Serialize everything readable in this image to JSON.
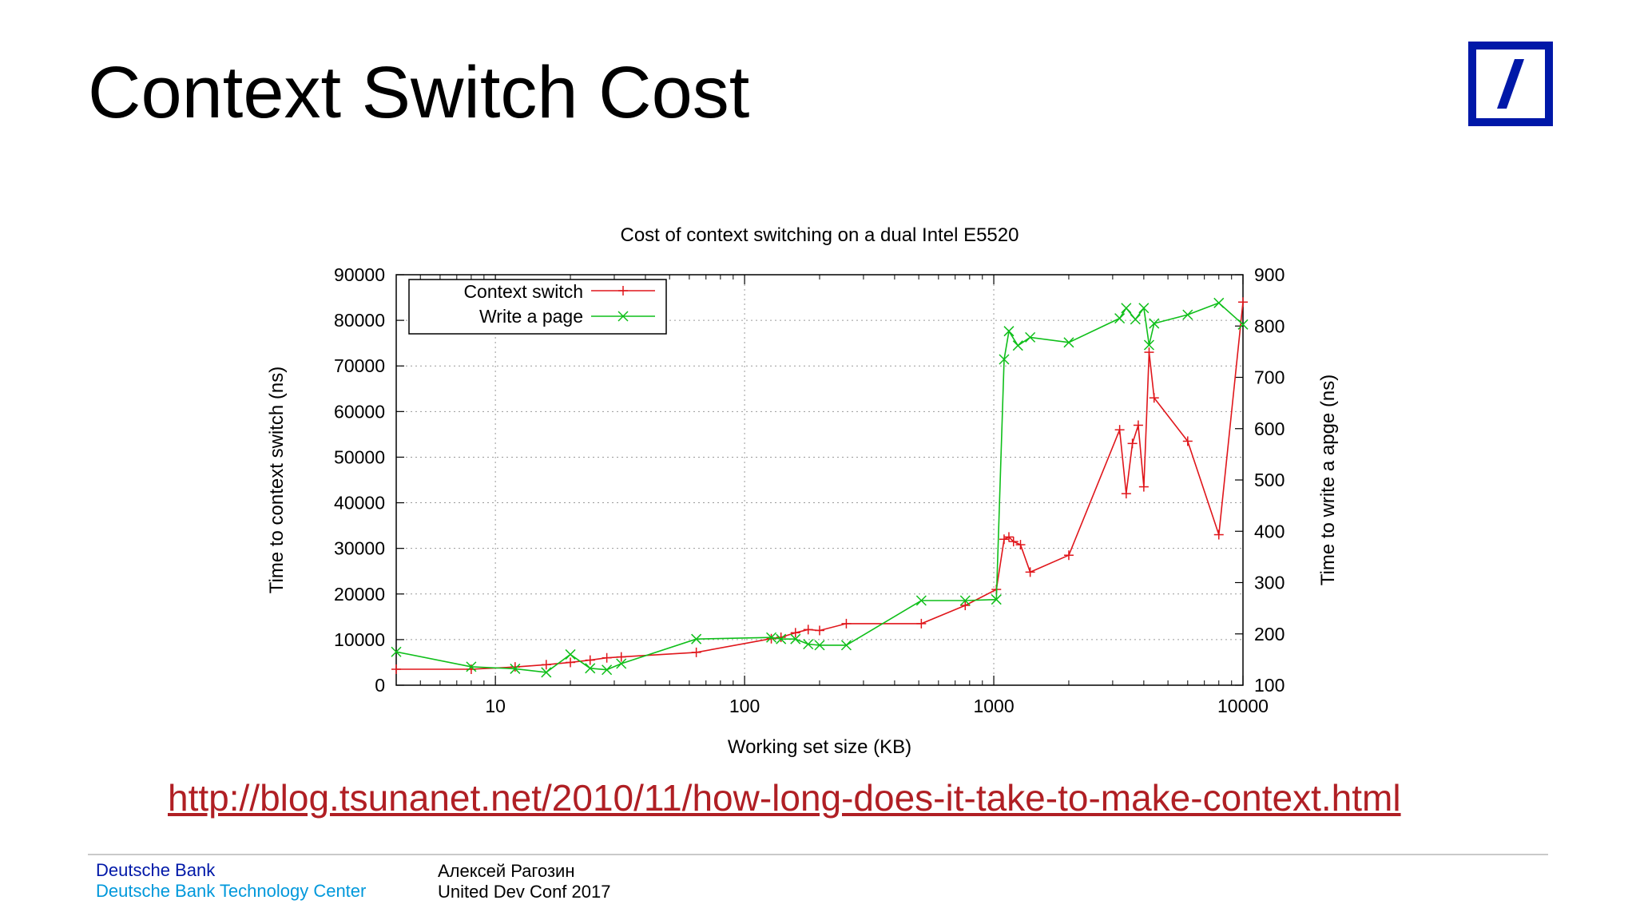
{
  "slide": {
    "title": "Context Switch Cost",
    "link_text": "http://blog.tsunanet.net/2010/11/how-long-does-it-take-to-make-context.html",
    "link_color": "#b01f24"
  },
  "logo": {
    "icon": "deutsche-bank-logo-icon",
    "color": "#0018a8"
  },
  "footer": {
    "company": "Deutsche Bank",
    "division": "Deutsche Bank Technology Center",
    "author": "Алексей Рагозин",
    "event": "United Dev Conf 2017"
  },
  "chart_data": {
    "type": "line",
    "title": "Cost of context switching on a dual Intel E5520",
    "xlabel": "Working set size (KB)",
    "ylabel": "Time to context switch (ns)",
    "y2label": "Time to write a apge (ns)",
    "xscale": "log",
    "xlim": [
      4,
      10000
    ],
    "ylim": [
      0,
      90000
    ],
    "y2lim": [
      100,
      900
    ],
    "xticks": [
      10,
      100,
      1000,
      10000
    ],
    "xtick_labels": [
      "10",
      "100",
      "1000",
      "10000"
    ],
    "yticks": [
      0,
      10000,
      20000,
      30000,
      40000,
      50000,
      60000,
      70000,
      80000,
      90000
    ],
    "ytick_labels": [
      "0",
      "10000",
      "20000",
      "30000",
      "40000",
      "50000",
      "60000",
      "70000",
      "80000",
      "90000"
    ],
    "y2ticks": [
      100,
      200,
      300,
      400,
      500,
      600,
      700,
      800,
      900
    ],
    "y2tick_labels": [
      "100",
      "200",
      "300",
      "400",
      "500",
      "600",
      "700",
      "800",
      "900"
    ],
    "grid": true,
    "legend_position": "top-left",
    "series": [
      {
        "name": "Context switch",
        "axis": "y",
        "color": "#e0161b",
        "marker": "plus",
        "x": [
          4,
          8,
          12,
          16,
          20,
          24,
          28,
          32,
          64,
          128,
          140,
          160,
          180,
          200,
          256,
          512,
          768,
          1024,
          1100,
          1150,
          1200,
          1280,
          1400,
          2000,
          3200,
          3400,
          3600,
          3800,
          4000,
          4200,
          4400,
          6000,
          8000,
          10000
        ],
        "y": [
          3500,
          3500,
          4000,
          4500,
          5000,
          5500,
          6000,
          6200,
          7200,
          10200,
          10500,
          11500,
          12200,
          12000,
          13500,
          13500,
          17500,
          21000,
          32000,
          32500,
          31500,
          30800,
          24800,
          28500,
          56000,
          42000,
          53000,
          57000,
          43500,
          73000,
          63000,
          53500,
          33000,
          84000
        ]
      },
      {
        "name": "Write a page",
        "axis": "y2",
        "color": "#0fbf1a",
        "marker": "cross",
        "x": [
          4,
          8,
          12,
          16,
          20,
          24,
          28,
          32,
          64,
          128,
          140,
          160,
          180,
          200,
          256,
          512,
          768,
          1024,
          1100,
          1150,
          1250,
          1400,
          2000,
          3200,
          3400,
          3700,
          4000,
          4200,
          4400,
          6000,
          8000,
          10000
        ],
        "y": [
          165,
          136,
          132,
          125,
          160,
          133,
          130,
          142,
          190,
          193,
          190,
          190,
          180,
          178,
          178,
          265,
          265,
          267,
          735,
          790,
          762,
          778,
          768,
          815,
          835,
          813,
          835,
          763,
          805,
          822,
          845,
          803
        ]
      }
    ]
  }
}
